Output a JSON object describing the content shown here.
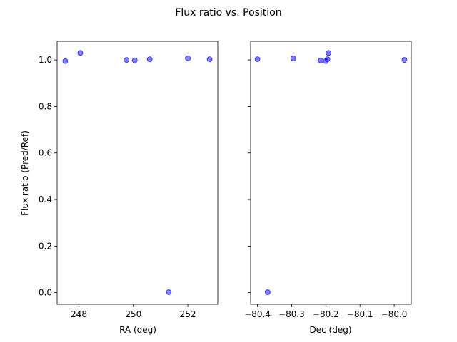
{
  "chart_data": {
    "type": "scatter",
    "title": "Flux ratio vs. Position",
    "marker_color": "#0000ff",
    "marker_alpha": 0.5,
    "panels": [
      {
        "xlabel": "RA (deg)",
        "ylabel": "Flux ratio (Pred/Ref)",
        "xlim": [
          247.2,
          253.1
        ],
        "ylim": [
          -0.05,
          1.08
        ],
        "xticks": [
          248,
          250,
          252
        ],
        "xtick_labels": [
          "248",
          "250",
          "252"
        ],
        "yticks": [
          0.0,
          0.2,
          0.4,
          0.6,
          0.8,
          1.0
        ],
        "ytick_labels": [
          "0.0",
          "0.2",
          "0.4",
          "0.6",
          "0.8",
          "1.0"
        ],
        "show_ytick_labels": true,
        "x": [
          247.5,
          248.05,
          249.75,
          250.05,
          250.6,
          251.3,
          252.0,
          252.8
        ],
        "y": [
          0.995,
          1.03,
          1.0,
          0.998,
          1.003,
          0.002,
          1.007,
          1.003
        ]
      },
      {
        "xlabel": "Dec (deg)",
        "ylabel": "",
        "xlim": [
          -80.42,
          -79.95
        ],
        "ylim": [
          -0.05,
          1.08
        ],
        "xticks": [
          -80.4,
          -80.3,
          -80.2,
          -80.1,
          -80.0
        ],
        "xtick_labels": [
          "−80.4",
          "−80.3",
          "−80.2",
          "−80.1",
          "−80.0"
        ],
        "yticks": [
          0.0,
          0.2,
          0.4,
          0.6,
          0.8,
          1.0
        ],
        "ytick_labels": [],
        "show_ytick_labels": false,
        "x": [
          -80.4,
          -80.37,
          -80.295,
          -80.215,
          -80.2,
          -80.195,
          -80.192,
          -79.97
        ],
        "y": [
          1.003,
          0.002,
          1.007,
          0.998,
          0.995,
          1.003,
          1.03,
          1.0
        ]
      }
    ]
  }
}
